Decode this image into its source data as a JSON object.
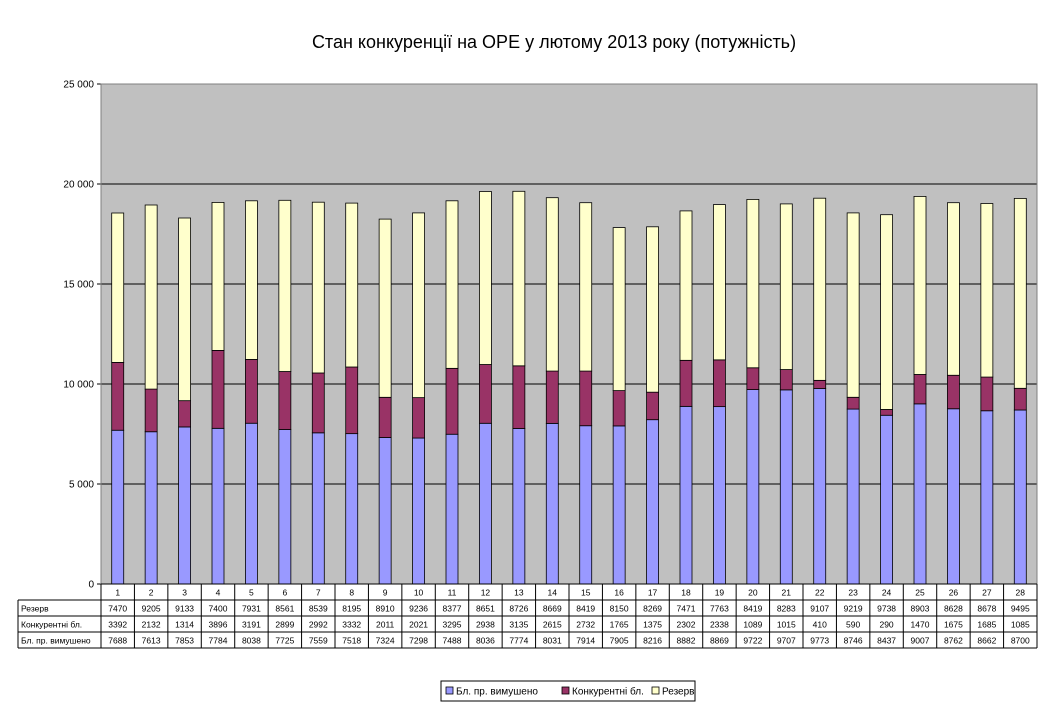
{
  "chart_data": {
    "type": "bar",
    "stacked": true,
    "title": "Стан конкуренції на ОРЕ  у лютому 2013 року (потужність)",
    "categories": [
      "1",
      "2",
      "3",
      "4",
      "5",
      "6",
      "7",
      "8",
      "9",
      "10",
      "11",
      "12",
      "13",
      "14",
      "15",
      "16",
      "17",
      "18",
      "19",
      "20",
      "21",
      "22",
      "23",
      "24",
      "25",
      "26",
      "27",
      "28"
    ],
    "yticks": [
      "0",
      "5 000",
      "10 000",
      "15 000",
      "20 000",
      "25 000"
    ],
    "ylim": [
      0,
      25000
    ],
    "grid": true,
    "legend_position": "bottom",
    "series": [
      {
        "name": "Бл. пр. вимушено",
        "color": "#9999ff",
        "values": [
          7688,
          7613,
          7853,
          7784,
          8038,
          7725,
          7559,
          7518,
          7324,
          7298,
          7488,
          8036,
          7774,
          8031,
          7914,
          7905,
          8216,
          8882,
          8869,
          9722,
          9707,
          9773,
          8746,
          8437,
          9007,
          8762,
          8662,
          8700
        ]
      },
      {
        "name": "Конкурентні бл.",
        "color": "#993366",
        "values": [
          3392,
          2132,
          1314,
          3896,
          3191,
          2899,
          2992,
          3332,
          2011,
          2021,
          3295,
          2938,
          3135,
          2615,
          2732,
          1765,
          1375,
          2302,
          2338,
          1089,
          1015,
          410,
          590,
          290,
          1470,
          1675,
          1685,
          1085
        ]
      },
      {
        "name": "Резерв",
        "color": "#ffffcc",
        "values": [
          7470,
          9205,
          9133,
          7400,
          7931,
          8561,
          8539,
          8195,
          8910,
          9236,
          8377,
          8651,
          8726,
          8669,
          8419,
          8150,
          8269,
          7471,
          7763,
          8419,
          8283,
          9107,
          9219,
          9738,
          8903,
          8628,
          8678,
          9495
        ]
      }
    ],
    "table_rows": [
      {
        "label": "Резерв",
        "series": 2
      },
      {
        "label": "Конкурентні бл.",
        "series": 1
      },
      {
        "label": "Бл. пр. вимушено",
        "series": 0
      }
    ]
  }
}
